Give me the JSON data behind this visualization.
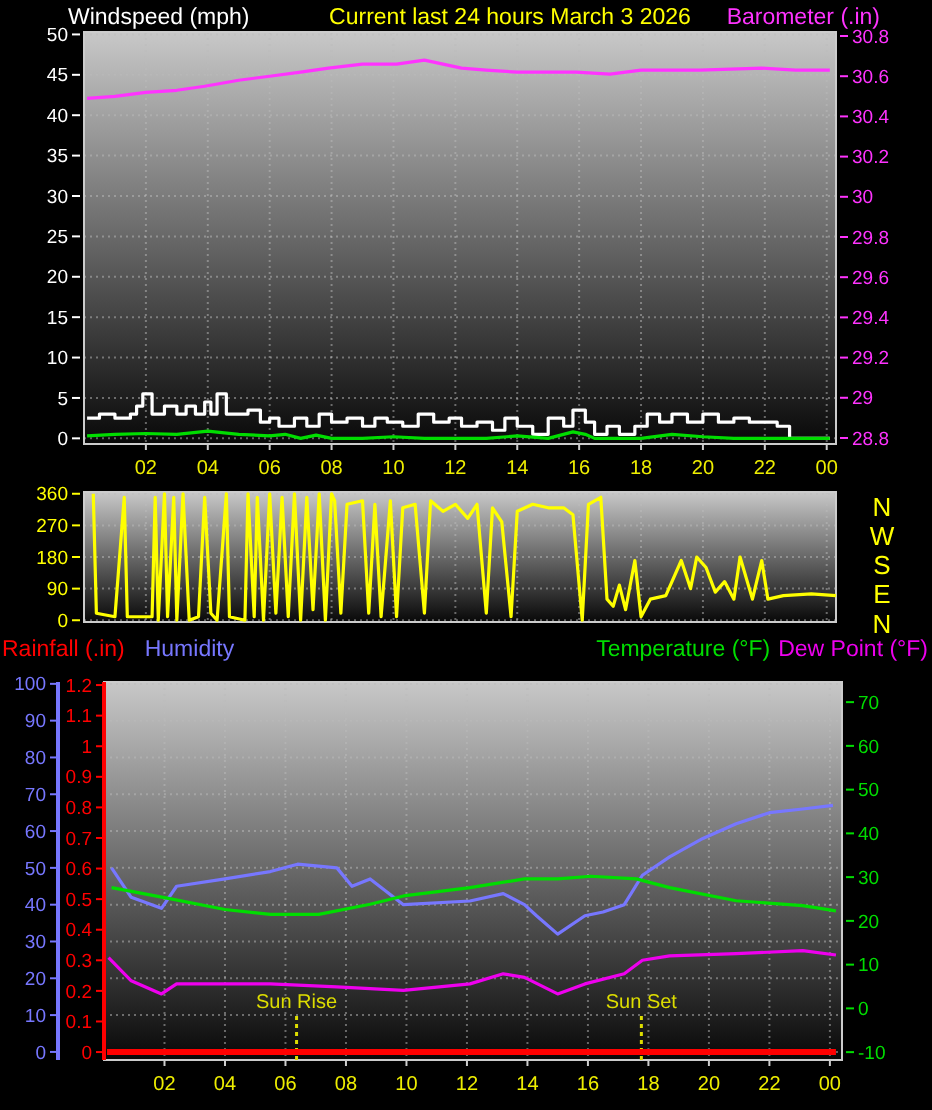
{
  "chart_data": [
    {
      "type": "line",
      "title": "Current last 24 hours March 3 2026",
      "ylabel": "Windspeed (mph)",
      "y2label": "Barometer (.in)",
      "grid": true,
      "xlim": [
        "2026-03-02T00:00",
        "2026-03-03T00:18"
      ],
      "xticks": [
        {
          "value": "2026-03-02T02:00",
          "label": "02"
        },
        {
          "value": "2026-03-02T04:00",
          "label": "04"
        },
        {
          "value": "2026-03-02T06:00",
          "label": "06"
        },
        {
          "value": "2026-03-02T08:00",
          "label": "08"
        },
        {
          "value": "2026-03-02T10:00",
          "label": "10"
        },
        {
          "value": "2026-03-02T12:00",
          "label": "12"
        },
        {
          "value": "2026-03-02T14:00",
          "label": "14"
        },
        {
          "value": "2026-03-02T16:00",
          "label": "16"
        },
        {
          "value": "2026-03-02T18:00",
          "label": "18"
        },
        {
          "value": "2026-03-02T20:00",
          "label": "20"
        },
        {
          "value": "2026-03-02T22:00",
          "label": "22"
        },
        {
          "value": "2026-03-03T00:00",
          "label": "00"
        }
      ],
      "ylim": [
        -0.7,
        50.3
      ],
      "yticks": [
        0,
        5,
        10,
        15,
        20,
        25,
        30,
        35,
        40,
        45,
        50
      ],
      "y2lim": [
        28.77,
        30.82
      ],
      "y2ticks": [
        28.8,
        29,
        29.2,
        29.4,
        29.6,
        29.8,
        30,
        30.2,
        30.4,
        30.6,
        30.8
      ],
      "series": [
        {
          "color": "#ffffff",
          "type": "step",
          "x": [
            "2026-03-02T00:06",
            "2026-03-02T00:30",
            "2026-03-02T01:00",
            "2026-03-02T01:30",
            "2026-03-02T01:42",
            "2026-03-02T01:54",
            "2026-03-02T02:12",
            "2026-03-02T02:36",
            "2026-03-02T03:00",
            "2026-03-02T03:18",
            "2026-03-02T03:36",
            "2026-03-02T03:54",
            "2026-03-02T04:06",
            "2026-03-02T04:18",
            "2026-03-02T04:36",
            "2026-03-02T05:00",
            "2026-03-02T05:18",
            "2026-03-02T05:42",
            "2026-03-02T06:00",
            "2026-03-02T06:18",
            "2026-03-02T06:48",
            "2026-03-02T07:12",
            "2026-03-02T07:36",
            "2026-03-02T08:00",
            "2026-03-02T08:30",
            "2026-03-02T09:00",
            "2026-03-02T09:24",
            "2026-03-02T09:48",
            "2026-03-02T10:18",
            "2026-03-02T10:48",
            "2026-03-02T11:18",
            "2026-03-02T11:48",
            "2026-03-02T12:12",
            "2026-03-02T12:42",
            "2026-03-02T13:12",
            "2026-03-02T13:36",
            "2026-03-02T14:00",
            "2026-03-02T14:30",
            "2026-03-02T15:00",
            "2026-03-02T15:30",
            "2026-03-02T15:48",
            "2026-03-02T16:12",
            "2026-03-02T16:30",
            "2026-03-02T16:54",
            "2026-03-02T17:18",
            "2026-03-02T17:48",
            "2026-03-02T18:12",
            "2026-03-02T18:36",
            "2026-03-02T19:00",
            "2026-03-02T19:30",
            "2026-03-02T20:00",
            "2026-03-02T20:30",
            "2026-03-02T21:00",
            "2026-03-02T21:30",
            "2026-03-02T22:00",
            "2026-03-02T22:24",
            "2026-03-02T22:48",
            "2026-03-03T00:06"
          ],
          "values": [
            2.5,
            3,
            2.5,
            3,
            4,
            5.5,
            3,
            4,
            3,
            4,
            3,
            4.5,
            3,
            5.5,
            3,
            3,
            3.5,
            2,
            2.5,
            1.5,
            2.5,
            1.5,
            3,
            2,
            2.5,
            1.5,
            2.5,
            2,
            1.5,
            3,
            2,
            2.5,
            1.5,
            2,
            1,
            2.5,
            1.5,
            0.5,
            2.5,
            1.5,
            3.5,
            2,
            0.5,
            1.5,
            0.5,
            1.5,
            3,
            2,
            3,
            2,
            3,
            2,
            2.5,
            2,
            2,
            1.5,
            0,
            0
          ]
        },
        {
          "color": "#00dd00",
          "x": [
            "2026-03-02T00:06",
            "2026-03-02T01:00",
            "2026-03-02T02:00",
            "2026-03-02T03:00",
            "2026-03-02T04:00",
            "2026-03-02T05:00",
            "2026-03-02T06:00",
            "2026-03-02T06:30",
            "2026-03-02T07:00",
            "2026-03-02T07:30",
            "2026-03-02T08:00",
            "2026-03-02T09:00",
            "2026-03-02T10:00",
            "2026-03-02T11:00",
            "2026-03-02T13:00",
            "2026-03-02T14:00",
            "2026-03-02T15:00",
            "2026-03-02T15:48",
            "2026-03-02T16:12",
            "2026-03-02T16:30",
            "2026-03-02T18:00",
            "2026-03-02T19:00",
            "2026-03-02T20:00",
            "2026-03-02T21:00",
            "2026-03-03T00:06"
          ],
          "values": [
            0.3,
            0.5,
            0.6,
            0.5,
            0.9,
            0.5,
            0.3,
            0.5,
            0,
            0.4,
            0,
            0,
            0.2,
            0,
            0,
            0.3,
            0,
            0.8,
            0.5,
            0,
            0,
            0.5,
            0.2,
            0,
            0
          ]
        },
        {
          "color": "#ff33ff",
          "axis": "y2",
          "x": [
            "2026-03-02T00:06",
            "2026-03-02T01:00",
            "2026-03-02T02:00",
            "2026-03-02T03:00",
            "2026-03-02T03:54",
            "2026-03-02T05:00",
            "2026-03-02T06:00",
            "2026-03-02T07:00",
            "2026-03-02T07:54",
            "2026-03-02T09:00",
            "2026-03-02T10:06",
            "2026-03-02T11:00",
            "2026-03-02T12:12",
            "2026-03-02T13:00",
            "2026-03-02T14:00",
            "2026-03-02T15:00",
            "2026-03-02T15:54",
            "2026-03-02T17:00",
            "2026-03-02T18:00",
            "2026-03-02T19:54",
            "2026-03-02T21:54",
            "2026-03-02T23:00",
            "2026-03-03T00:06"
          ],
          "values": [
            30.49,
            30.5,
            30.52,
            30.53,
            30.55,
            30.58,
            30.6,
            30.62,
            30.64,
            30.66,
            30.66,
            30.68,
            30.64,
            30.63,
            30.62,
            30.62,
            30.62,
            30.61,
            30.63,
            30.63,
            30.64,
            30.63,
            30.63
          ]
        }
      ]
    },
    {
      "type": "line",
      "grid": true,
      "tick_labels": "y",
      "annotations": [
        "N",
        "W",
        "S",
        "E",
        "N"
      ],
      "xlim": [
        "2026-03-02T00:00",
        "2026-03-03T00:18"
      ],
      "ylim": [
        -5,
        365
      ],
      "yticks": [
        0,
        90,
        180,
        270,
        360
      ],
      "series": [
        {
          "color": "#ffff00",
          "x": [
            "2026-03-02T00:18",
            "2026-03-02T00:24",
            "2026-03-02T01:00",
            "2026-03-02T01:18",
            "2026-03-02T01:24",
            "2026-03-02T02:12",
            "2026-03-02T02:18",
            "2026-03-02T02:24",
            "2026-03-02T02:36",
            "2026-03-02T02:42",
            "2026-03-02T02:54",
            "2026-03-02T03:00",
            "2026-03-02T03:12",
            "2026-03-02T03:24",
            "2026-03-02T03:42",
            "2026-03-02T03:54",
            "2026-03-02T04:06",
            "2026-03-02T04:18",
            "2026-03-02T04:36",
            "2026-03-02T04:42",
            "2026-03-02T05:12",
            "2026-03-02T05:18",
            "2026-03-02T05:30",
            "2026-03-02T05:36",
            "2026-03-02T05:48",
            "2026-03-02T06:00",
            "2026-03-02T06:12",
            "2026-03-02T06:24",
            "2026-03-02T06:36",
            "2026-03-02T06:48",
            "2026-03-02T07:00",
            "2026-03-02T07:12",
            "2026-03-02T07:24",
            "2026-03-02T07:36",
            "2026-03-02T07:48",
            "2026-03-02T08:00",
            "2026-03-02T08:06",
            "2026-03-02T08:18",
            "2026-03-02T08:30",
            "2026-03-02T09:00",
            "2026-03-02T09:12",
            "2026-03-02T09:24",
            "2026-03-02T09:36",
            "2026-03-02T09:54",
            "2026-03-02T10:06",
            "2026-03-02T10:18",
            "2026-03-02T10:42",
            "2026-03-02T11:00",
            "2026-03-02T11:12",
            "2026-03-02T11:36",
            "2026-03-02T12:00",
            "2026-03-02T12:24",
            "2026-03-02T12:42",
            "2026-03-02T13:00",
            "2026-03-02T13:12",
            "2026-03-02T13:30",
            "2026-03-02T13:48",
            "2026-03-02T14:00",
            "2026-03-02T14:30",
            "2026-03-02T15:00",
            "2026-03-02T15:30",
            "2026-03-02T15:48",
            "2026-03-02T16:06",
            "2026-03-02T16:18",
            "2026-03-02T16:42",
            "2026-03-02T16:54",
            "2026-03-02T17:06",
            "2026-03-02T17:18",
            "2026-03-02T17:30",
            "2026-03-02T17:48",
            "2026-03-02T18:00",
            "2026-03-02T18:18",
            "2026-03-02T18:48",
            "2026-03-02T19:18",
            "2026-03-02T19:36",
            "2026-03-02T19:48",
            "2026-03-02T20:06",
            "2026-03-02T20:24",
            "2026-03-02T20:42",
            "2026-03-02T21:00",
            "2026-03-02T21:12",
            "2026-03-02T21:36",
            "2026-03-02T21:54",
            "2026-03-02T22:06",
            "2026-03-02T22:36",
            "2026-03-02T23:30",
            "2026-03-03T00:18"
          ],
          "values": [
            360,
            20,
            10,
            350,
            10,
            10,
            350,
            0,
            360,
            10,
            350,
            0,
            360,
            0,
            10,
            350,
            20,
            0,
            360,
            10,
            0,
            360,
            10,
            350,
            0,
            360,
            20,
            350,
            10,
            360,
            0,
            350,
            30,
            360,
            0,
            360,
            340,
            20,
            330,
            340,
            20,
            330,
            10,
            340,
            10,
            320,
            330,
            20,
            340,
            310,
            330,
            290,
            330,
            20,
            320,
            280,
            10,
            310,
            330,
            320,
            320,
            300,
            0,
            330,
            350,
            60,
            40,
            100,
            30,
            170,
            10,
            60,
            70,
            170,
            90,
            180,
            150,
            80,
            110,
            60,
            180,
            60,
            170,
            60,
            70,
            75,
            70
          ]
        }
      ]
    },
    {
      "type": "line",
      "grid": true,
      "legend": "top",
      "xlim": [
        "2026-03-02T00:00",
        "2026-03-03T00:24"
      ],
      "xticks": [
        {
          "value": "2026-03-02T02:00",
          "label": "02"
        },
        {
          "value": "2026-03-02T04:00",
          "label": "04"
        },
        {
          "value": "2026-03-02T06:00",
          "label": "06"
        },
        {
          "value": "2026-03-02T08:00",
          "label": "08"
        },
        {
          "value": "2026-03-02T10:00",
          "label": "10"
        },
        {
          "value": "2026-03-02T12:00",
          "label": "12"
        },
        {
          "value": "2026-03-02T14:00",
          "label": "14"
        },
        {
          "value": "2026-03-02T16:00",
          "label": "16"
        },
        {
          "value": "2026-03-02T18:00",
          "label": "18"
        },
        {
          "value": "2026-03-02T20:00",
          "label": "20"
        },
        {
          "value": "2026-03-02T22:00",
          "label": "22"
        },
        {
          "value": "2026-03-03T00:00",
          "label": "00"
        }
      ],
      "ylim": [
        -2.2,
        100.5
      ],
      "yticks": [
        0,
        10,
        20,
        30,
        40,
        50,
        60,
        70,
        80,
        90,
        100
      ],
      "y2lim": [
        -11.8,
        74.6
      ],
      "y2ticks": [
        -10,
        0,
        10,
        20,
        30,
        40,
        50,
        60,
        70
      ],
      "y3lim": [
        -0.026,
        1.21
      ],
      "y3ticks": [
        0,
        0.1,
        0.2,
        0.3,
        0.4,
        0.5,
        0.6,
        0.7,
        0.8,
        0.9,
        1,
        1.1,
        1.2
      ],
      "ref_lines": [
        {
          "axis": "x",
          "value": "2026-03-02T06:22",
          "label": "Sun Rise",
          "color": "#dddd00",
          "line_style": "dotted"
        },
        {
          "axis": "x",
          "value": "2026-03-02T17:46",
          "label": "Sun Set",
          "color": "#dddd00",
          "line_style": "dotted"
        }
      ],
      "series": [
        {
          "name": "Rainfall (.in)",
          "color": "#ff0000",
          "axis": "y3",
          "x": [
            "2026-03-02T00:06",
            "2026-03-03T00:12"
          ],
          "values": [
            0,
            0
          ]
        },
        {
          "name": "Humidity",
          "color": "#7777ff",
          "x": [
            "2026-03-02T00:15",
            "2026-03-02T00:54",
            "2026-03-02T01:54",
            "2026-03-02T02:24",
            "2026-03-02T04:00",
            "2026-03-02T05:30",
            "2026-03-02T06:24",
            "2026-03-02T07:42",
            "2026-03-02T08:12",
            "2026-03-02T08:48",
            "2026-03-02T09:54",
            "2026-03-02T12:06",
            "2026-03-02T13:12",
            "2026-03-02T13:54",
            "2026-03-02T14:18",
            "2026-03-02T15:00",
            "2026-03-02T15:54",
            "2026-03-02T16:30",
            "2026-03-02T17:12",
            "2026-03-02T17:48",
            "2026-03-02T18:42",
            "2026-03-02T19:48",
            "2026-03-02T20:54",
            "2026-03-02T22:00",
            "2026-03-02T23:06",
            "2026-03-03T00:06"
          ],
          "values": [
            50,
            42,
            39,
            45,
            47,
            49,
            51,
            50,
            45,
            47,
            40,
            41,
            43,
            40,
            37,
            32,
            37,
            38,
            40,
            48,
            53,
            58,
            62,
            65,
            66,
            67
          ]
        },
        {
          "name": "Temperature (°F)",
          "color": "#00dd00",
          "axis": "y2",
          "x": [
            "2026-03-02T00:15",
            "2026-03-02T02:00",
            "2026-03-02T04:00",
            "2026-03-02T05:30",
            "2026-03-02T07:06",
            "2026-03-02T08:48",
            "2026-03-02T09:54",
            "2026-03-02T12:06",
            "2026-03-02T13:54",
            "2026-03-02T15:00",
            "2026-03-02T16:06",
            "2026-03-02T17:36",
            "2026-03-02T18:42",
            "2026-03-02T20:54",
            "2026-03-02T23:06",
            "2026-03-03T00:12"
          ],
          "values": [
            27.6,
            25.3,
            22.6,
            21.5,
            21.5,
            23.8,
            25.7,
            27.6,
            29.6,
            29.6,
            30.2,
            29.6,
            27.6,
            24.6,
            23.5,
            22.3
          ]
        },
        {
          "name": "Dew Point (°F)",
          "color": "#ee00ee",
          "axis": "y2",
          "x": [
            "2026-03-02T00:09",
            "2026-03-02T00:54",
            "2026-03-02T01:54",
            "2026-03-02T02:24",
            "2026-03-02T05:30",
            "2026-03-02T07:42",
            "2026-03-02T09:54",
            "2026-03-02T12:06",
            "2026-03-02T13:12",
            "2026-03-02T13:54",
            "2026-03-02T15:00",
            "2026-03-02T15:54",
            "2026-03-02T17:12",
            "2026-03-02T17:48",
            "2026-03-02T18:42",
            "2026-03-02T20:54",
            "2026-03-02T23:06",
            "2026-03-03T00:12"
          ],
          "values": [
            11.6,
            6.3,
            3.3,
            5.6,
            5.6,
            4.9,
            4.1,
            5.6,
            7.9,
            7.1,
            3.3,
            5.6,
            7.9,
            11,
            12,
            12.5,
            13.2,
            12.2
          ]
        }
      ]
    }
  ]
}
